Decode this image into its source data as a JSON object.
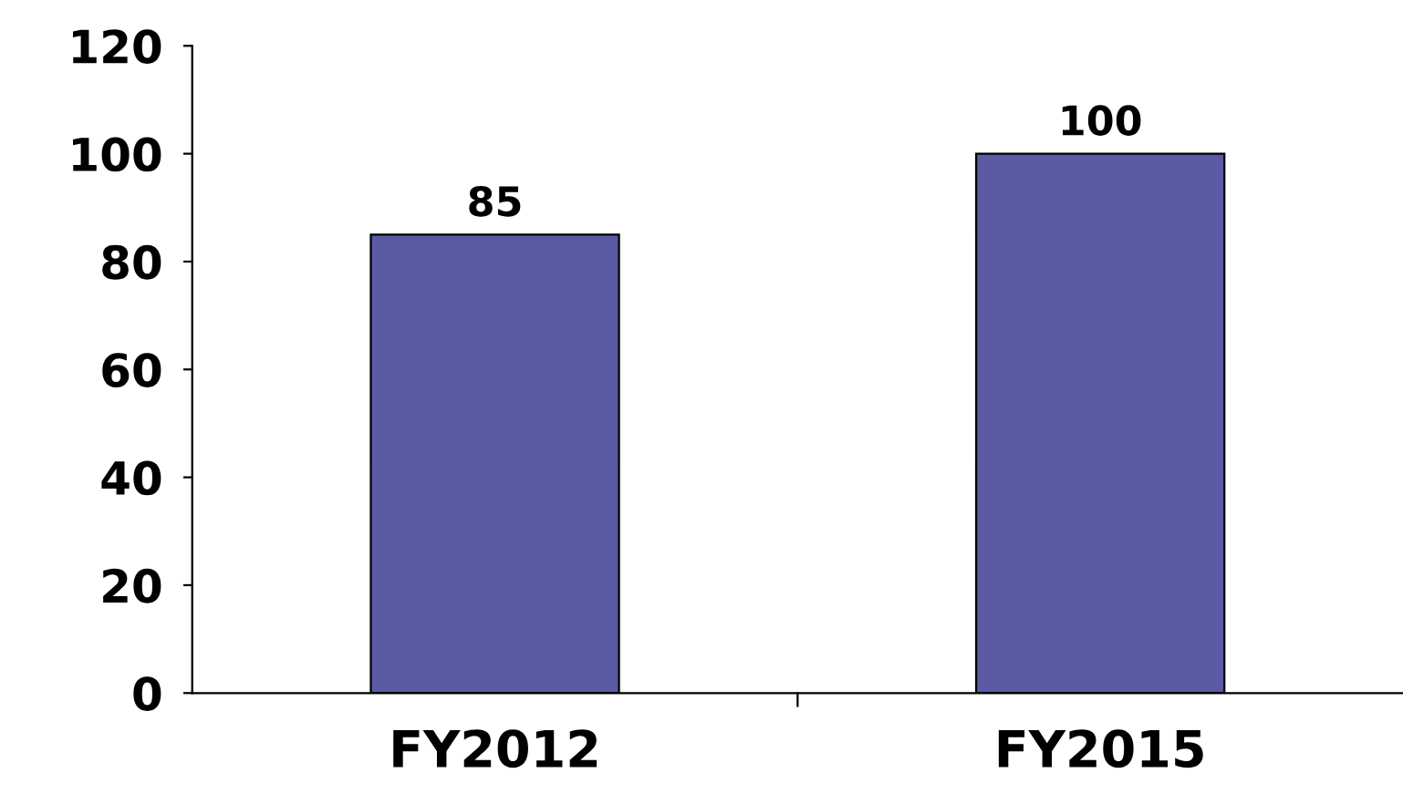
{
  "chart_data": {
    "type": "bar",
    "categories": [
      "FY2012",
      "FY2015"
    ],
    "values": [
      85,
      100
    ],
    "color": "#5a5aa5",
    "ylim": [
      0,
      120
    ],
    "yticks": [
      0,
      20,
      40,
      60,
      80,
      100,
      120
    ],
    "data_labels": true,
    "grid": false,
    "legend": false
  }
}
